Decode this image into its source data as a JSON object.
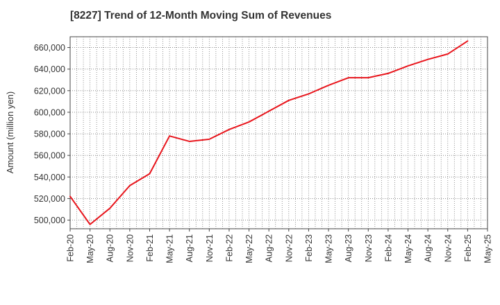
{
  "chart_data": {
    "type": "line",
    "title": "[8227]  Trend of 12-Month Moving Sum of Revenues",
    "xlabel": "",
    "ylabel": "Amount (million yen)",
    "ylim": [
      492000,
      670000
    ],
    "yticks": [
      500000,
      520000,
      540000,
      560000,
      580000,
      600000,
      620000,
      640000,
      660000
    ],
    "ytick_labels": [
      "500,000",
      "520,000",
      "540,000",
      "560,000",
      "580,000",
      "600,000",
      "620,000",
      "640,000",
      "660,000"
    ],
    "xtick_labels": [
      "Feb-20",
      "May-20",
      "Aug-20",
      "Nov-20",
      "Feb-21",
      "May-21",
      "Aug-21",
      "Nov-21",
      "Feb-22",
      "May-22",
      "Aug-22",
      "Nov-22",
      "Feb-23",
      "May-23",
      "Aug-23",
      "Nov-23",
      "Feb-24",
      "May-24",
      "Aug-24",
      "Nov-24",
      "Feb-25",
      "May-25"
    ],
    "grid": true,
    "series": [
      {
        "name": "",
        "color": "#e8141b",
        "x": [
          "Feb-20",
          "May-20",
          "Aug-20",
          "Nov-20",
          "Feb-21",
          "May-21",
          "Aug-21",
          "Nov-21",
          "Feb-22",
          "May-22",
          "Aug-22",
          "Nov-22",
          "Feb-23",
          "May-23",
          "Aug-23",
          "Nov-23",
          "Feb-24",
          "May-24",
          "Aug-24",
          "Nov-24",
          "Feb-25"
        ],
        "values": [
          522000,
          496000,
          511000,
          532000,
          543000,
          578000,
          573000,
          575000,
          584000,
          591000,
          601000,
          611000,
          617000,
          625000,
          632000,
          632000,
          636000,
          643000,
          649000,
          654000,
          666000
        ]
      }
    ]
  }
}
